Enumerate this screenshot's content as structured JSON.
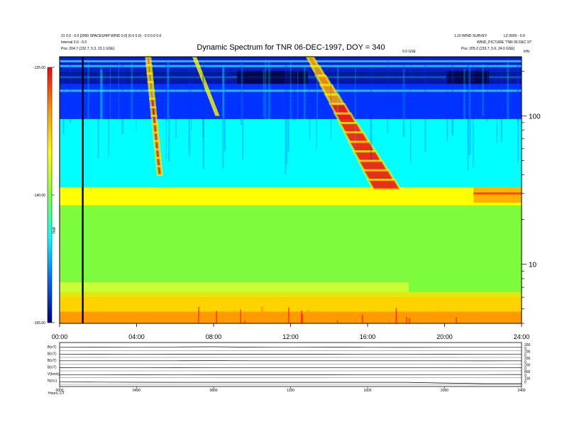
{
  "header": {
    "title": "Dynamic Spectrum for TNR 06-DEC-1997, DOY = 340",
    "left_line1": "31 0.0 - 0.0 [2000 SPACESHIP WIND 0.0] (0.0 0.0) - 0.0 0.0 0.0",
    "left_line2": "Interval 0.0 - 0.0",
    "left_pos": "Pos:  204.7 (232.7, 5.3, 23.1 GSE)",
    "right_line1": "1.10 WIND SURVEY",
    "right_line2": "LZ 0000 - 0.0",
    "right_line3": "WIND_PICTURE 'TNR 06 DEC 97'",
    "right_pos": "Pos:  205.2 (233.7, 5.6, 24.0 GSE)",
    "mid_label": "0.0 GSE"
  },
  "colorbar": {
    "quantity_label": "TNR",
    "tick_labels": [
      "-125.00",
      "-140.00",
      "-155.00"
    ],
    "stops": [
      "#ff0000",
      "#ff9900",
      "#ffff00",
      "#80ff40",
      "#00ffff",
      "#0066ff",
      "#000080"
    ]
  },
  "chart_data": [
    {
      "type": "heatmap",
      "title": "Dynamic Spectrum for TNR 06-DEC-1997, DOY = 340",
      "x_ticks": [
        "00:00",
        "04:00",
        "08:00",
        "12:00",
        "16:00",
        "20:00",
        "24:00"
      ],
      "xlim_hours": [
        0,
        24
      ],
      "y_scale": "log",
      "ylabel": "kHz",
      "ylim_khz": [
        4,
        250
      ],
      "y_ticks": [
        100,
        10
      ],
      "y_tick_labels": [
        "100",
        "10"
      ],
      "color_range_db": [
        -155,
        -125
      ],
      "grid": false,
      "colors": {
        "red": "#ff1a00",
        "orange": "#ff9a00",
        "yellow": "#ffff00",
        "green": "#7cfc3c",
        "cyan": "#00ffff",
        "blue": "#0033ff",
        "navy": "#000060"
      },
      "cursor_hour": 1.2,
      "bands_khz": [
        {
          "from": 4,
          "to": 6,
          "level": "orange-yellow"
        },
        {
          "from": 6,
          "to": 25,
          "level": "green-yellow"
        },
        {
          "from": 25,
          "to": 33,
          "level": "yellow-green"
        },
        {
          "from": 33,
          "to": 95,
          "level": "cyan"
        },
        {
          "from": 95,
          "to": 200,
          "level": "blue"
        },
        {
          "from": 200,
          "to": 250,
          "level": "blue-navy"
        }
      ],
      "bursts": [
        {
          "start_hour": 4.6,
          "end_hour": 5.2,
          "f_start_khz": 250,
          "f_end_khz": 40
        },
        {
          "start_hour": 13.0,
          "end_hour": 17.0,
          "f_start_khz": 250,
          "f_end_khz": 32
        },
        {
          "start_hour": 7.0,
          "end_hour": 8.2,
          "f_start_khz": 250,
          "f_end_khz": 100
        }
      ]
    },
    {
      "type": "line",
      "title": "",
      "x_ticks": [
        "00:00",
        "04:00",
        "08:00",
        "12:00",
        "16:00",
        "20:00",
        "24:00"
      ],
      "xlim_hours": [
        0,
        24
      ],
      "series": [
        {
          "name": "B(nT)",
          "right_ticks": [
            "200",
            "0"
          ],
          "values": [
            0.5,
            0.52,
            0.5,
            0.55,
            0.58,
            0.52,
            0.5,
            0.53,
            0.5,
            0.48,
            0.5,
            0.5,
            0.5
          ]
        },
        {
          "name": "B(nT)",
          "right_ticks": [
            "200",
            "0"
          ],
          "values": [
            0.45,
            0.46,
            0.45,
            0.47,
            0.47,
            0.46,
            0.46,
            0.46,
            0.45,
            0.45,
            0.46,
            0.45,
            0.45
          ]
        },
        {
          "name": "B(nT)",
          "right_ticks": [
            "200",
            "0"
          ],
          "values": [
            0.5,
            0.5,
            0.5,
            0.5,
            0.52,
            0.5,
            0.5,
            0.5,
            0.5,
            0.5,
            0.5,
            0.48,
            0.5
          ]
        },
        {
          "name": "B(nT)",
          "right_ticks": [
            "200",
            "0"
          ],
          "values": [
            0.48,
            0.5,
            0.5,
            0.48,
            0.5,
            0.5,
            0.5,
            0.5,
            0.5,
            0.5,
            0.5,
            0.5,
            0.5
          ]
        },
        {
          "name": "V(km/s)",
          "right_ticks": [
            "800",
            "0"
          ],
          "values": [
            0.4,
            0.4,
            0.41,
            0.4,
            0.41,
            0.42,
            0.42,
            0.43,
            0.44,
            0.44,
            0.45,
            0.45,
            0.46
          ]
        },
        {
          "name": "N(/cc)",
          "right_ticks": [
            "100",
            "0"
          ],
          "values": [
            0.35,
            0.34,
            0.32,
            0.3,
            0.3,
            0.3,
            0.3,
            0.3,
            0.31,
            0.3,
            0.2,
            0.1,
            0.1
          ]
        }
      ],
      "bottom_tick_labels": [
        "0000",
        "0400",
        "0800",
        "1200",
        "1600",
        "2000",
        "2400"
      ],
      "footer_label": "Hours, UT"
    }
  ]
}
